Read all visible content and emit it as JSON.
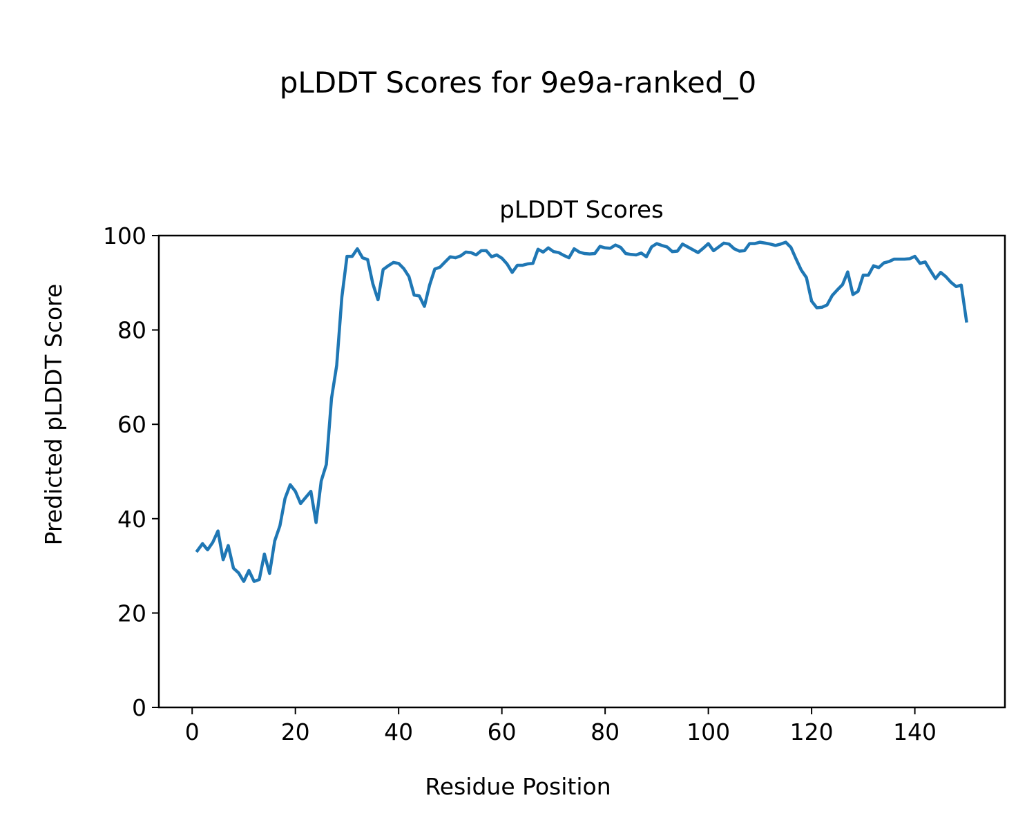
{
  "chart_data": {
    "type": "line",
    "suptitle": "pLDDT Scores for 9e9a-ranked_0",
    "title": "pLDDT Scores",
    "xlabel": "Residue Position",
    "ylabel": "Predicted pLDDT Score",
    "xlim": [
      -6.45,
      157.45
    ],
    "ylim": [
      0,
      100
    ],
    "xticks": [
      0,
      20,
      40,
      60,
      80,
      100,
      120,
      140
    ],
    "yticks": [
      0,
      20,
      40,
      60,
      80,
      100
    ],
    "grid": false,
    "line_color": "#1f77b4",
    "x_start": 1,
    "values": [
      33.2,
      34.7,
      33.4,
      35.0,
      37.4,
      31.3,
      34.3,
      29.5,
      28.5,
      26.7,
      29.0,
      26.7,
      27.1,
      32.5,
      28.4,
      35.3,
      38.5,
      44.3,
      47.2,
      45.8,
      43.2,
      44.5,
      45.8,
      39.2,
      48.0,
      51.5,
      65.5,
      72.5,
      87.0,
      95.6,
      95.6,
      97.2,
      95.3,
      94.9,
      89.8,
      86.4,
      92.8,
      93.6,
      94.3,
      94.1,
      93.0,
      91.3,
      87.4,
      87.2,
      85.0,
      89.5,
      92.9,
      93.3,
      94.4,
      95.5,
      95.3,
      95.7,
      96.5,
      96.4,
      95.9,
      96.8,
      96.8,
      95.5,
      95.9,
      95.2,
      94.0,
      92.2,
      93.7,
      93.7,
      94.0,
      94.1,
      97.1,
      96.5,
      97.4,
      96.6,
      96.4,
      95.8,
      95.3,
      97.2,
      96.5,
      96.2,
      96.1,
      96.2,
      97.7,
      97.4,
      97.3,
      98.0,
      97.5,
      96.2,
      96.0,
      95.9,
      96.3,
      95.5,
      97.6,
      98.3,
      97.9,
      97.6,
      96.6,
      96.7,
      98.2,
      97.6,
      97.0,
      96.4,
      97.3,
      98.3,
      96.8,
      97.6,
      98.4,
      98.2,
      97.2,
      96.7,
      96.8,
      98.3,
      98.3,
      98.6,
      98.4,
      98.2,
      97.9,
      98.2,
      98.6,
      97.5,
      95.0,
      92.7,
      91.1,
      86.1,
      84.7,
      84.8,
      85.3,
      87.3,
      88.5,
      89.6,
      92.3,
      87.5,
      88.2,
      91.6,
      91.6,
      93.6,
      93.2,
      94.2,
      94.5,
      95.0,
      95.0,
      95.0,
      95.1,
      95.6,
      94.1,
      94.4,
      92.6,
      90.9,
      92.2,
      91.3,
      90.1,
      89.2,
      89.5,
      81.9
    ]
  }
}
